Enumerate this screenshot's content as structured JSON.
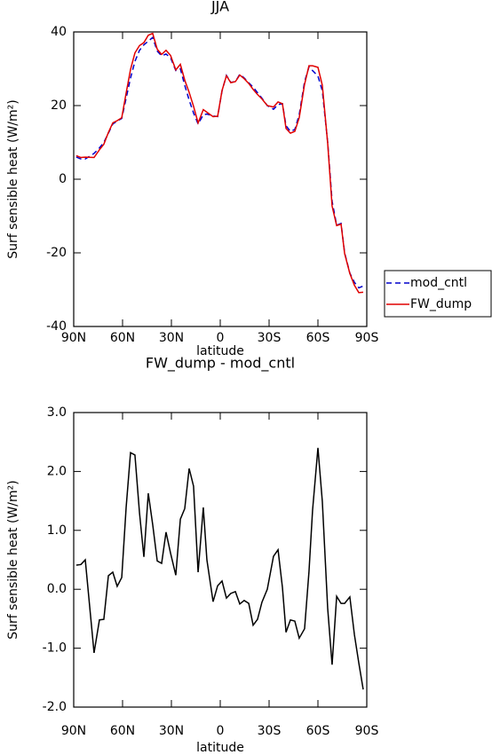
{
  "chart_data": [
    {
      "type": "line",
      "title": "JJA",
      "xlabel": "latitude",
      "ylabel": "Surf sensible heat (W/m²)",
      "x": [
        88.4,
        85.6,
        82.9,
        77.5,
        74.2,
        71.5,
        68.7,
        66.0,
        63.3,
        60.5,
        57.8,
        55.1,
        52.4,
        49.6,
        46.9,
        44.2,
        41.5,
        38.7,
        36.0,
        33.3,
        30.5,
        27.3,
        24.5,
        21.8,
        19.1,
        16.4,
        13.6,
        10.4,
        8.2,
        4.4,
        1.6,
        -1.1,
        -3.8,
        -6.5,
        -9.3,
        -12.0,
        -14.7,
        -17.5,
        -20.2,
        -22.9,
        -25.6,
        -28.9,
        -32.7,
        -35.5,
        -38.2,
        -40.4,
        -43.1,
        -45.8,
        -48.5,
        -51.8,
        -54.5,
        -56.7,
        -60.0,
        -62.7,
        -66.0,
        -68.7,
        -71.5,
        -74.2,
        -76.4,
        -79.6,
        -82.4,
        -85.1,
        -87.8
      ],
      "series": [
        {
          "name": "mod_cntl",
          "color": "#0000cc",
          "dashed": true,
          "values": [
            6,
            5.5,
            5.5,
            7,
            8.5,
            10,
            12.5,
            15,
            15.8,
            16.5,
            22,
            27.5,
            32,
            35,
            36.5,
            37.5,
            38.5,
            34.8,
            33.5,
            34,
            33,
            29.5,
            30,
            25.5,
            21.5,
            18,
            15,
            17.5,
            17.7,
            17.2,
            17,
            24,
            28.2,
            26.3,
            26.5,
            28.5,
            27.5,
            26.2,
            25,
            23.5,
            22,
            20,
            19,
            20.3,
            20.5,
            14.5,
            13,
            13.5,
            17.5,
            26.5,
            30.5,
            29.5,
            28,
            24,
            10,
            -6,
            -12.5,
            -12,
            -20,
            -25.5,
            -28,
            -29.5,
            -29
          ]
        },
        {
          "name": "FW_dump",
          "color": "#e00000",
          "dashed": false,
          "values": [
            6.4,
            5.9,
            6.0,
            5.9,
            8.0,
            9.5,
            12.7,
            15.3,
            15.9,
            16.7,
            23.4,
            29.8,
            34.3,
            36.3,
            37.1,
            39.1,
            39.6,
            35.3,
            33.9,
            35.0,
            33.6,
            29.7,
            31.2,
            26.9,
            23.6,
            19.8,
            15.3,
            18.9,
            18.2,
            17.0,
            17.1,
            24.1,
            28.1,
            26.2,
            26.5,
            28.3,
            27.3,
            26.0,
            24.4,
            23.0,
            21.8,
            20.0,
            19.6,
            21.0,
            20.5,
            13.8,
            12.5,
            13.0,
            16.7,
            25.8,
            30.8,
            30.8,
            30.4,
            25.5,
            9.7,
            -7.3,
            -12.6,
            -12.2,
            -20.2,
            -25.6,
            -28.8,
            -30.8,
            -30.7
          ]
        }
      ],
      "xlim": [
        90,
        -90
      ],
      "xticks": [
        {
          "value": 90,
          "label": "90N"
        },
        {
          "value": 60,
          "label": "60N"
        },
        {
          "value": 30,
          "label": "30N"
        },
        0,
        {
          "value": -30,
          "label": "30S"
        },
        {
          "value": -60,
          "label": "60S"
        },
        {
          "value": -90,
          "label": "90S"
        }
      ],
      "ylim": [
        -40,
        40
      ],
      "yticks": [
        40,
        20,
        0,
        -20,
        -40
      ],
      "legend": "outside-right"
    },
    {
      "type": "line",
      "title": "FW_dump - mod_cntl",
      "xlabel": "latitude",
      "ylabel": "Surf sensible heat (W/m²)",
      "x": [
        88.4,
        85.6,
        82.9,
        77.5,
        74.2,
        71.5,
        68.7,
        66.0,
        63.3,
        60.5,
        57.8,
        55.1,
        52.4,
        49.6,
        46.9,
        44.2,
        41.5,
        38.7,
        36.0,
        33.3,
        30.5,
        27.3,
        24.5,
        21.8,
        19.1,
        16.4,
        13.6,
        10.4,
        8.2,
        4.4,
        1.6,
        -1.1,
        -3.8,
        -6.5,
        -9.3,
        -12.0,
        -14.7,
        -17.5,
        -20.2,
        -22.9,
        -25.6,
        -28.9,
        -32.7,
        -35.5,
        -38.2,
        -40.4,
        -43.1,
        -45.8,
        -48.5,
        -51.8,
        -54.5,
        -56.7,
        -60.0,
        -62.7,
        -66.0,
        -68.7,
        -71.5,
        -74.2,
        -76.4,
        -79.6,
        -82.4,
        -85.1,
        -87.8
      ],
      "values": [
        0.41,
        0.42,
        0.5,
        -1.08,
        -0.52,
        -0.51,
        0.23,
        0.29,
        0.05,
        0.2,
        1.39,
        2.32,
        2.28,
        1.3,
        0.55,
        1.63,
        1.1,
        0.48,
        0.44,
        0.97,
        0.61,
        0.24,
        1.19,
        1.37,
        2.05,
        1.75,
        0.29,
        1.39,
        0.5,
        -0.21,
        0.06,
        0.14,
        -0.15,
        -0.07,
        -0.04,
        -0.25,
        -0.19,
        -0.24,
        -0.61,
        -0.51,
        -0.22,
        0.0,
        0.56,
        0.67,
        0.03,
        -0.73,
        -0.52,
        -0.54,
        -0.83,
        -0.67,
        0.3,
        1.34,
        2.4,
        1.49,
        -0.33,
        -1.28,
        -0.12,
        -0.24,
        -0.24,
        -0.13,
        -0.77,
        -1.25,
        -1.7
      ],
      "color": "#000000",
      "xlim": [
        90,
        -90
      ],
      "xticks": [
        {
          "value": 90,
          "label": "90N"
        },
        {
          "value": 60,
          "label": "60N"
        },
        {
          "value": 30,
          "label": "30N"
        },
        0,
        {
          "value": -30,
          "label": "30S"
        },
        {
          "value": -60,
          "label": "60S"
        },
        {
          "value": -90,
          "label": "90S"
        }
      ],
      "ylim": [
        -2,
        3
      ],
      "yticks": [
        {
          "value": 3,
          "label": "3.0"
        },
        {
          "value": 2,
          "label": "2.0"
        },
        {
          "value": 1,
          "label": "1.0"
        },
        {
          "value": 0,
          "label": "0.0"
        },
        {
          "value": -1,
          "label": "-1.0"
        },
        {
          "value": -2,
          "label": "-2.0"
        }
      ]
    }
  ]
}
